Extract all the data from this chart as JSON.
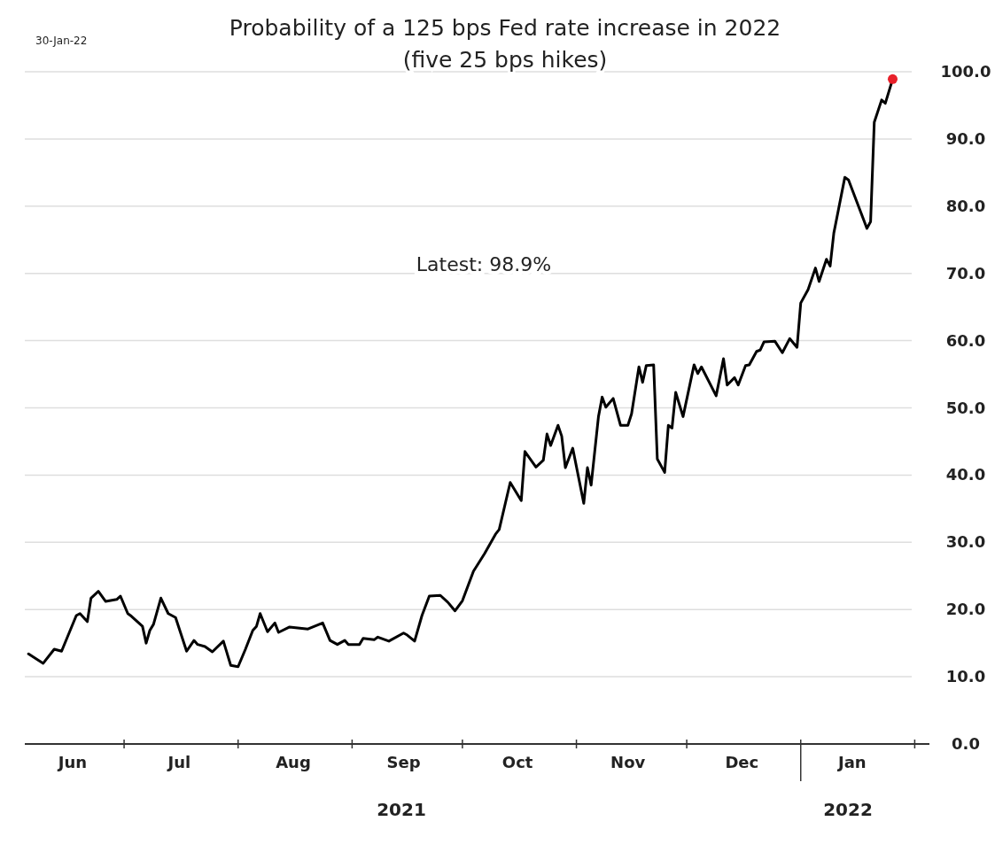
{
  "chart_data": {
    "type": "line",
    "title": "Probability of a 125 bps Fed rate increase in 2022",
    "subtitle": "(five 25 bps hikes)",
    "annotations": [
      "30-Jan-22",
      "Latest:  98.9%",
      "2021",
      "2022"
    ],
    "xlim": [
      "2021-06-04",
      "2022-02-05"
    ],
    "xticks": [
      {
        "value": "2021-07-01",
        "label": null
      },
      {
        "value": "2021-08-01",
        "label": null
      },
      {
        "value": "2021-09-01",
        "label": null
      },
      {
        "value": "2021-10-01",
        "label": null
      },
      {
        "value": "2021-11-01",
        "label": null
      },
      {
        "value": "2021-12-01",
        "label": null
      },
      {
        "value": "2022-01-01",
        "label": null
      },
      {
        "value": "2022-02-01",
        "label": null
      },
      {
        "value": "2021-06-17",
        "label": "Jun"
      },
      {
        "value": "2021-07-16",
        "label": "Jul"
      },
      {
        "value": "2021-08-16",
        "label": "Aug"
      },
      {
        "value": "2021-09-15",
        "label": "Sep"
      },
      {
        "value": "2021-10-16",
        "label": "Oct"
      },
      {
        "value": "2021-11-15",
        "label": "Nov"
      },
      {
        "value": "2021-12-16",
        "label": "Dec"
      },
      {
        "value": "2022-01-15",
        "label": "Jan"
      }
    ],
    "ylim": [
      0,
      100
    ],
    "yticks": [
      {
        "value": 0,
        "label": "0.0"
      },
      {
        "value": 10,
        "label": "10.0"
      },
      {
        "value": 20,
        "label": "20.0"
      },
      {
        "value": 30,
        "label": "30.0"
      },
      {
        "value": 40,
        "label": "40.0"
      },
      {
        "value": 50,
        "label": "50.0"
      },
      {
        "value": 60,
        "label": "60.0"
      },
      {
        "value": 70,
        "label": "70.0"
      },
      {
        "value": 80,
        "label": "80.0"
      },
      {
        "value": 90,
        "label": "90.0"
      },
      {
        "value": 100,
        "label": "100.0"
      }
    ],
    "grid": "y",
    "marker": "none",
    "line_style": "solid",
    "series": [
      {
        "color": "#000000",
        "x": [
          "2021-06-05",
          "2021-06-09",
          "2021-06-12",
          "2021-06-14",
          "2021-06-18",
          "2021-06-19",
          "2021-06-21",
          "2021-06-22",
          "2021-06-24",
          "2021-06-26",
          "2021-06-29",
          "2021-06-30",
          "2021-07-02",
          "2021-07-03",
          "2021-07-06",
          "2021-07-07",
          "2021-07-08",
          "2021-07-09",
          "2021-07-11",
          "2021-07-13",
          "2021-07-15",
          "2021-07-18",
          "2021-07-20",
          "2021-07-21",
          "2021-07-23",
          "2021-07-25",
          "2021-07-28",
          "2021-07-30",
          "2021-08-01",
          "2021-08-03",
          "2021-08-05",
          "2021-08-06",
          "2021-08-07",
          "2021-08-09",
          "2021-08-11",
          "2021-08-12",
          "2021-08-15",
          "2021-08-20",
          "2021-08-24",
          "2021-08-26",
          "2021-08-28",
          "2021-08-30",
          "2021-08-31",
          "2021-09-03",
          "2021-09-04",
          "2021-09-07",
          "2021-09-08",
          "2021-09-11",
          "2021-09-15",
          "2021-09-16",
          "2021-09-18",
          "2021-09-20",
          "2021-09-22",
          "2021-09-25",
          "2021-09-27",
          "2021-09-29",
          "2021-10-01",
          "2021-10-04",
          "2021-10-07",
          "2021-10-10",
          "2021-10-11",
          "2021-10-14",
          "2021-10-17",
          "2021-10-18",
          "2021-10-21",
          "2021-10-23",
          "2021-10-24",
          "2021-10-25",
          "2021-10-27",
          "2021-10-28",
          "2021-10-29",
          "2021-10-31",
          "2021-11-03",
          "2021-11-04",
          "2021-11-05",
          "2021-11-07",
          "2021-11-08",
          "2021-11-09",
          "2021-11-11",
          "2021-11-13",
          "2021-11-15",
          "2021-11-16",
          "2021-11-18",
          "2021-11-19",
          "2021-11-20",
          "2021-11-22",
          "2021-11-23",
          "2021-11-25",
          "2021-11-26",
          "2021-11-27",
          "2021-11-28",
          "2021-11-30",
          "2021-12-03",
          "2021-12-04",
          "2021-12-05",
          "2021-12-09",
          "2021-12-11",
          "2021-12-12",
          "2021-12-14",
          "2021-12-15",
          "2021-12-17",
          "2021-12-18",
          "2021-12-20",
          "2021-12-21",
          "2021-12-22",
          "2021-12-25",
          "2021-12-27",
          "2021-12-29",
          "2021-12-31",
          "2022-01-01",
          "2022-01-03",
          "2022-01-05",
          "2022-01-06",
          "2022-01-08",
          "2022-01-09",
          "2022-01-10",
          "2022-01-13",
          "2022-01-14",
          "2022-01-19",
          "2022-01-20",
          "2022-01-21",
          "2022-01-23",
          "2022-01-24",
          "2022-01-26"
        ],
        "values": [
          13.4,
          12.0,
          14.1,
          13.8,
          19.1,
          19.4,
          18.2,
          21.7,
          22.7,
          21.2,
          21.5,
          22.0,
          19.4,
          19.0,
          17.5,
          15.0,
          16.9,
          17.8,
          21.7,
          19.4,
          18.8,
          13.8,
          15.4,
          14.8,
          14.5,
          13.7,
          15.3,
          11.7,
          11.5,
          14.1,
          16.9,
          17.5,
          19.4,
          16.7,
          18.0,
          16.6,
          17.4,
          17.1,
          18.0,
          15.4,
          14.8,
          15.4,
          14.8,
          14.8,
          15.7,
          15.5,
          15.9,
          15.3,
          16.5,
          16.2,
          15.3,
          19.1,
          22.0,
          22.1,
          21.1,
          19.8,
          21.3,
          25.7,
          28.3,
          31.2,
          31.9,
          38.9,
          36.2,
          43.5,
          41.2,
          42.2,
          46.1,
          44.4,
          47.4,
          45.8,
          41.1,
          44.0,
          35.8,
          41.1,
          38.5,
          48.7,
          51.6,
          50.1,
          51.4,
          47.4,
          47.4,
          49.1,
          56.1,
          53.8,
          56.3,
          56.4,
          42.4,
          40.4,
          47.4,
          47.0,
          52.3,
          48.7,
          56.4,
          55.1,
          56.1,
          51.8,
          57.3,
          53.4,
          54.5,
          53.4,
          56.3,
          56.4,
          58.4,
          58.6,
          59.8,
          59.9,
          58.2,
          60.3,
          59.0,
          65.6,
          67.6,
          70.8,
          68.8,
          72.1,
          71.1,
          76.0,
          84.3,
          83.9,
          76.7,
          77.7,
          92.5,
          95.8,
          95.3,
          98.9
        ]
      },
      {
        "type": "scatter",
        "color": "#e8202a",
        "marker": "circle",
        "x": [
          "2022-01-26"
        ],
        "values": [
          98.9
        ]
      }
    ]
  }
}
